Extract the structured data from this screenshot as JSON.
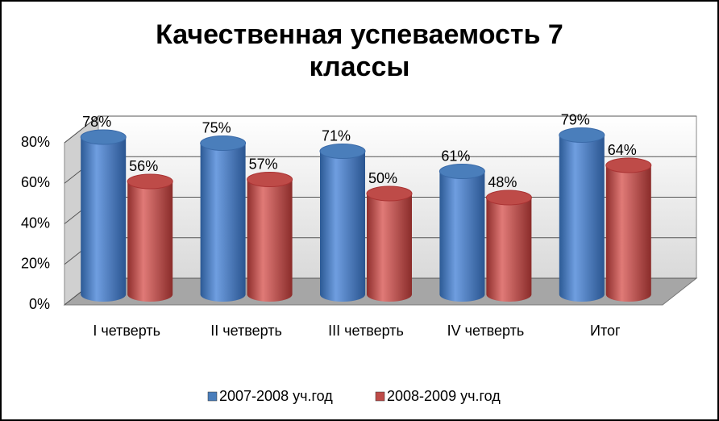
{
  "chart_data": {
    "type": "bar",
    "title": "Качественная успеваемость 7 классы",
    "categories": [
      "I четверть",
      "II четверть",
      "III четверть",
      "IV четверть",
      "Итог"
    ],
    "series": [
      {
        "name": "2007-2008 уч.год",
        "color": "#4a7ebb",
        "values": [
          78,
          75,
          71,
          61,
          79
        ],
        "value_labels": [
          "78%",
          "75%",
          "71%",
          "61%",
          "79%"
        ]
      },
      {
        "name": "2008-2009 уч.год",
        "color": "#be4b48",
        "values": [
          56,
          57,
          50,
          48,
          64
        ],
        "value_labels": [
          "56%",
          "57%",
          "50%",
          "48%",
          "64%"
        ]
      }
    ],
    "ylim": [
      0,
      80
    ],
    "yticks": [
      {
        "value": 0,
        "label": "0%"
      },
      {
        "value": 20,
        "label": "20%"
      },
      {
        "value": 40,
        "label": "40%"
      },
      {
        "value": 60,
        "label": "60%"
      },
      {
        "value": 80,
        "label": "80%"
      }
    ],
    "grid": true,
    "legend": "bottom"
  }
}
